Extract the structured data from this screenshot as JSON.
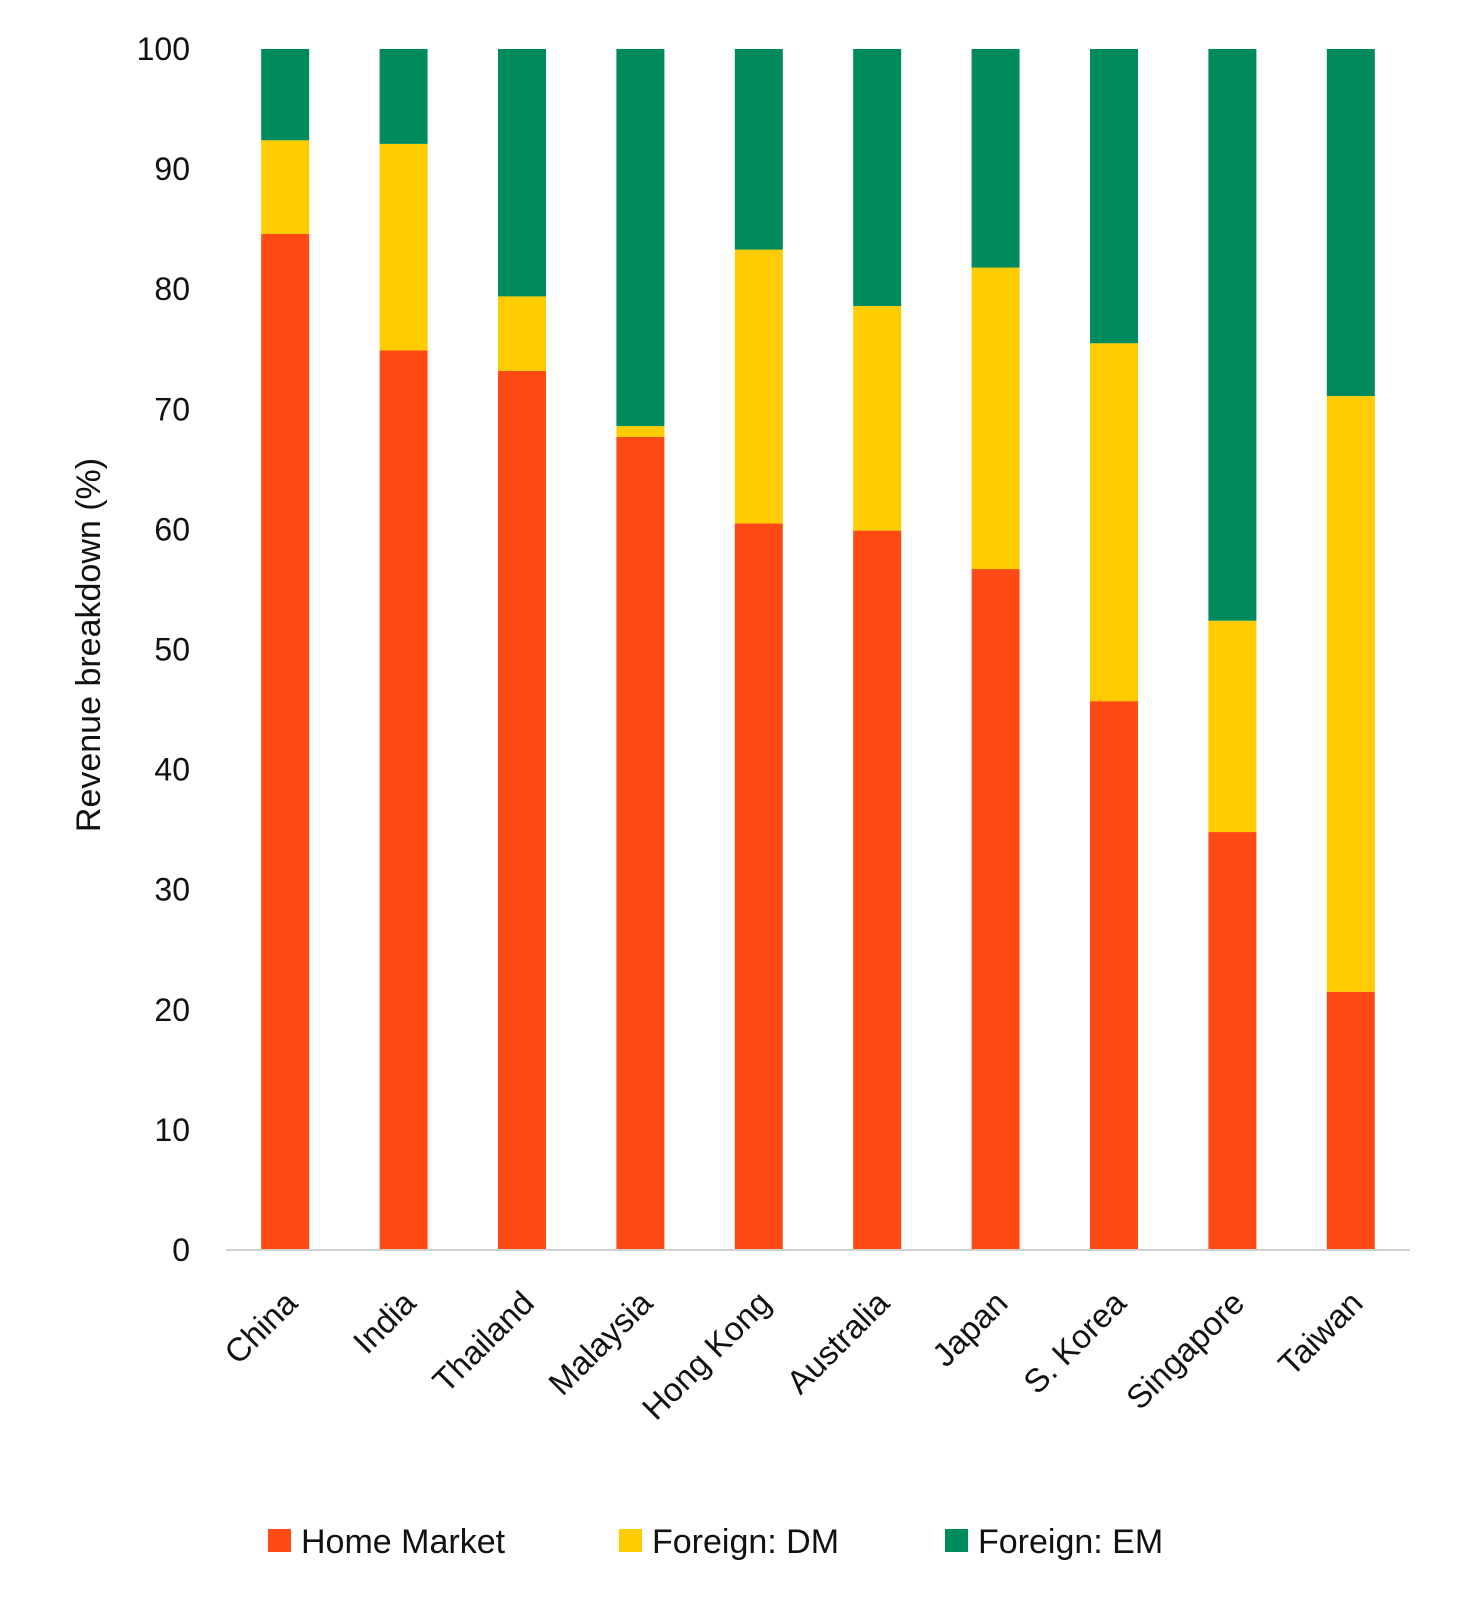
{
  "chart_data": {
    "type": "bar",
    "stacked": true,
    "ylabel": "Revenue breakdown (%)",
    "xlabel": "",
    "ylim": [
      0,
      100
    ],
    "yticks": [
      0,
      10,
      20,
      30,
      40,
      50,
      60,
      70,
      80,
      90,
      100
    ],
    "grid": false,
    "legend_position": "bottom",
    "categories": [
      "China",
      "India",
      "Thailand",
      "Malaysia",
      "Hong Kong",
      "Australia",
      "Japan",
      "S. Korea",
      "Singapore",
      "Taiwan"
    ],
    "series": [
      {
        "name": "Home Market",
        "color": "#ff4a14",
        "values": [
          84.6,
          74.9,
          73.2,
          67.7,
          60.5,
          59.9,
          56.7,
          45.7,
          34.8,
          21.5
        ]
      },
      {
        "name": "Foreign: DM",
        "color": "#ffcc00",
        "values": [
          7.8,
          17.2,
          6.2,
          0.9,
          22.8,
          18.7,
          25.1,
          29.8,
          17.6,
          49.6
        ]
      },
      {
        "name": "Foreign: EM",
        "color": "#008b5e",
        "values": [
          7.6,
          7.9,
          20.6,
          31.4,
          16.7,
          21.4,
          18.2,
          24.5,
          47.6,
          28.9
        ]
      }
    ]
  }
}
